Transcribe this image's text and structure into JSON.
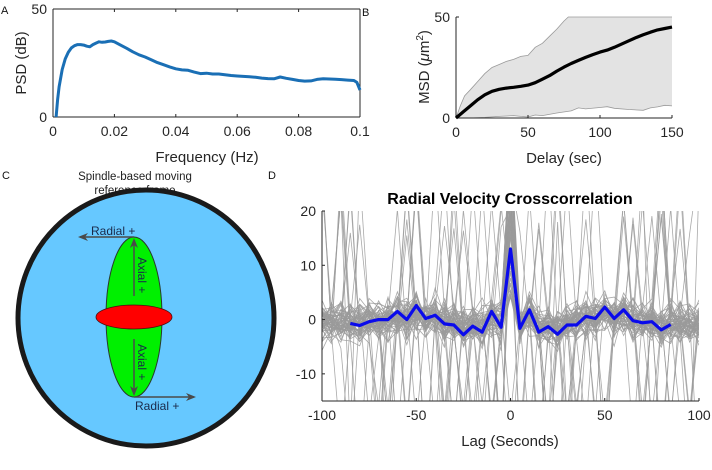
{
  "panels": {
    "A": "A",
    "B": "B",
    "C": "C",
    "D": "D"
  },
  "chart_data": [
    {
      "id": "A",
      "type": "line",
      "title": "",
      "xlabel": "Frequency (Hz)",
      "ylabel": "PSD (dB)",
      "xlim": [
        0,
        0.1
      ],
      "ylim": [
        0,
        50
      ],
      "xticks": [
        0,
        0.02,
        0.04,
        0.06,
        0.08,
        0.1
      ],
      "xtick_labels": [
        "0",
        "0.02",
        "0.04",
        "0.06",
        "0.08",
        "0.1"
      ],
      "yticks": [
        0,
        50
      ],
      "ytick_labels": [
        "0",
        "50"
      ],
      "grid": false,
      "color": "#1a6fb5",
      "series": [
        {
          "name": "PSD",
          "x": [
            0.001,
            0.0015,
            0.002,
            0.003,
            0.004,
            0.005,
            0.006,
            0.007,
            0.008,
            0.009,
            0.01,
            0.011,
            0.012,
            0.013,
            0.014,
            0.015,
            0.016,
            0.017,
            0.018,
            0.019,
            0.02,
            0.022,
            0.024,
            0.026,
            0.028,
            0.03,
            0.032,
            0.034,
            0.036,
            0.038,
            0.04,
            0.042,
            0.044,
            0.046,
            0.048,
            0.05,
            0.052,
            0.054,
            0.056,
            0.058,
            0.06,
            0.062,
            0.064,
            0.066,
            0.068,
            0.07,
            0.072,
            0.074,
            0.076,
            0.078,
            0.08,
            0.082,
            0.084,
            0.086,
            0.088,
            0.09,
            0.092,
            0.094,
            0.096,
            0.098,
            0.099,
            0.1
          ],
          "y": [
            0,
            8,
            14,
            22,
            27,
            30,
            32,
            33,
            33.5,
            33.5,
            33.3,
            32.8,
            32.5,
            33.5,
            34.2,
            34.8,
            34.6,
            34.7,
            35.0,
            35.2,
            34.8,
            33.3,
            31.8,
            30.2,
            28.8,
            27.8,
            26.5,
            25.2,
            24.2,
            23.2,
            22.3,
            21.8,
            21.6,
            20.8,
            20.1,
            20.3,
            19.9,
            19.9,
            19.6,
            19.2,
            19.0,
            18.8,
            18.6,
            18.4,
            18.0,
            17.8,
            17.7,
            18.5,
            17.9,
            17.4,
            16.9,
            16.6,
            16.7,
            17.4,
            17.7,
            17.6,
            17.5,
            17.3,
            17.1,
            16.9,
            16.0,
            12.5
          ]
        }
      ]
    },
    {
      "id": "B",
      "type": "line",
      "title": "",
      "xlabel": "Delay (sec)",
      "ylabel": "MSD (μm²)",
      "ylabel_parts": {
        "main": "MSD (",
        "mu": "μ",
        "unit": "m",
        "sup": "2",
        "close": ")"
      },
      "xlim": [
        0,
        150
      ],
      "ylim": [
        0,
        50
      ],
      "xticks": [
        0,
        50,
        100,
        150
      ],
      "xtick_labels": [
        "0",
        "50",
        "100",
        "150"
      ],
      "yticks": [
        0,
        50
      ],
      "ytick_labels": [
        "0",
        "50"
      ],
      "grid": false,
      "mean_color": "#000000",
      "band_color": "#e3e3e3",
      "band_edge_color": "#9a9a9a",
      "series": [
        {
          "name": "mean MSD",
          "x": [
            0,
            5,
            10,
            15,
            20,
            25,
            30,
            35,
            40,
            45,
            50,
            55,
            60,
            65,
            70,
            75,
            80,
            85,
            90,
            95,
            100,
            105,
            110,
            115,
            120,
            125,
            130,
            135,
            140,
            145,
            150
          ],
          "y": [
            0,
            3,
            6,
            9,
            11.5,
            13.2,
            14.2,
            14.8,
            15.2,
            15.7,
            16.3,
            17.5,
            19.2,
            21.0,
            23.2,
            25.2,
            27.0,
            28.5,
            30.0,
            31.4,
            32.6,
            33.6,
            35.0,
            36.6,
            38.2,
            39.8,
            41.2,
            42.5,
            43.6,
            44.3,
            45.0
          ]
        },
        {
          "name": "upper bound",
          "x": [
            0,
            3,
            6,
            10,
            15,
            20,
            25,
            30,
            35,
            40,
            45,
            50,
            55,
            60,
            65,
            70,
            75,
            78,
            150
          ],
          "y": [
            0,
            6,
            11,
            14,
            18,
            22,
            25,
            26.5,
            28,
            29,
            30.5,
            31,
            35,
            37,
            40.5,
            44,
            48,
            50,
            50
          ]
        },
        {
          "name": "lower bound",
          "x": [
            0,
            10,
            20,
            30,
            40,
            45,
            50,
            55,
            60,
            70,
            80,
            85,
            90,
            100,
            105,
            110,
            120,
            130,
            135,
            140,
            145,
            150
          ],
          "y": [
            0,
            0,
            0.3,
            0.8,
            1.2,
            0.8,
            0.5,
            1.5,
            1.2,
            2.5,
            3.5,
            5.0,
            4.5,
            5.2,
            5.6,
            4.8,
            4.2,
            3.8,
            5.0,
            5.5,
            6.3,
            6.0
          ]
        }
      ]
    },
    {
      "id": "D",
      "type": "line",
      "title": "Radial Velocity Crosscorrelation",
      "xlabel": "Lag (Seconds)",
      "ylabel": "",
      "xlim": [
        -100,
        100
      ],
      "ylim": [
        -15,
        20
      ],
      "xticks": [
        -100,
        -50,
        0,
        50,
        100
      ],
      "xtick_labels": [
        "-100",
        "-50",
        "0",
        "50",
        "100"
      ],
      "yticks": [
        -10,
        0,
        10,
        20
      ],
      "ytick_labels": [
        "-10",
        "0",
        "10",
        "20"
      ],
      "grid": false,
      "mean_color": "#0a0aeb",
      "trace_color": "#9a9a9a",
      "trace_count": 60,
      "series": [
        {
          "name": "mean crosscorrelation",
          "x": [
            -85,
            -80,
            -75,
            -70,
            -65,
            -60,
            -55,
            -50,
            -45,
            -40,
            -35,
            -30,
            -25,
            -20,
            -15,
            -10,
            -5,
            0,
            5,
            10,
            15,
            20,
            25,
            30,
            35,
            40,
            45,
            50,
            55,
            60,
            65,
            70,
            75,
            80,
            85
          ],
          "y": [
            -0.7,
            -1.1,
            -0.4,
            0,
            0,
            1.5,
            0,
            2.6,
            0.2,
            0.8,
            -0.8,
            -1.0,
            -2.8,
            -1.2,
            -2.3,
            1.5,
            -1.4,
            13.0,
            -1.6,
            1.8,
            -2.3,
            -1.3,
            -2.7,
            -1.0,
            -1.0,
            0.6,
            0.2,
            2.3,
            0.2,
            1.8,
            -0.2,
            -0.6,
            -0.4,
            -1.9,
            -0.9
          ]
        }
      ]
    }
  ],
  "diagram": {
    "caption_line1": "Spindle-based moving",
    "caption_line2": "reference frame",
    "radial_top_label": "Radial +",
    "radial_bottom_label": "Radial +",
    "axial_top_label": "Axial +",
    "axial_bottom_label": "Axial +",
    "colors": {
      "cell": "#66c8ff",
      "cell_border": "#1a1a1a",
      "spindle": "#00f000",
      "chromosomes": "#ff0000",
      "arrow": "#4a4a4a"
    }
  }
}
